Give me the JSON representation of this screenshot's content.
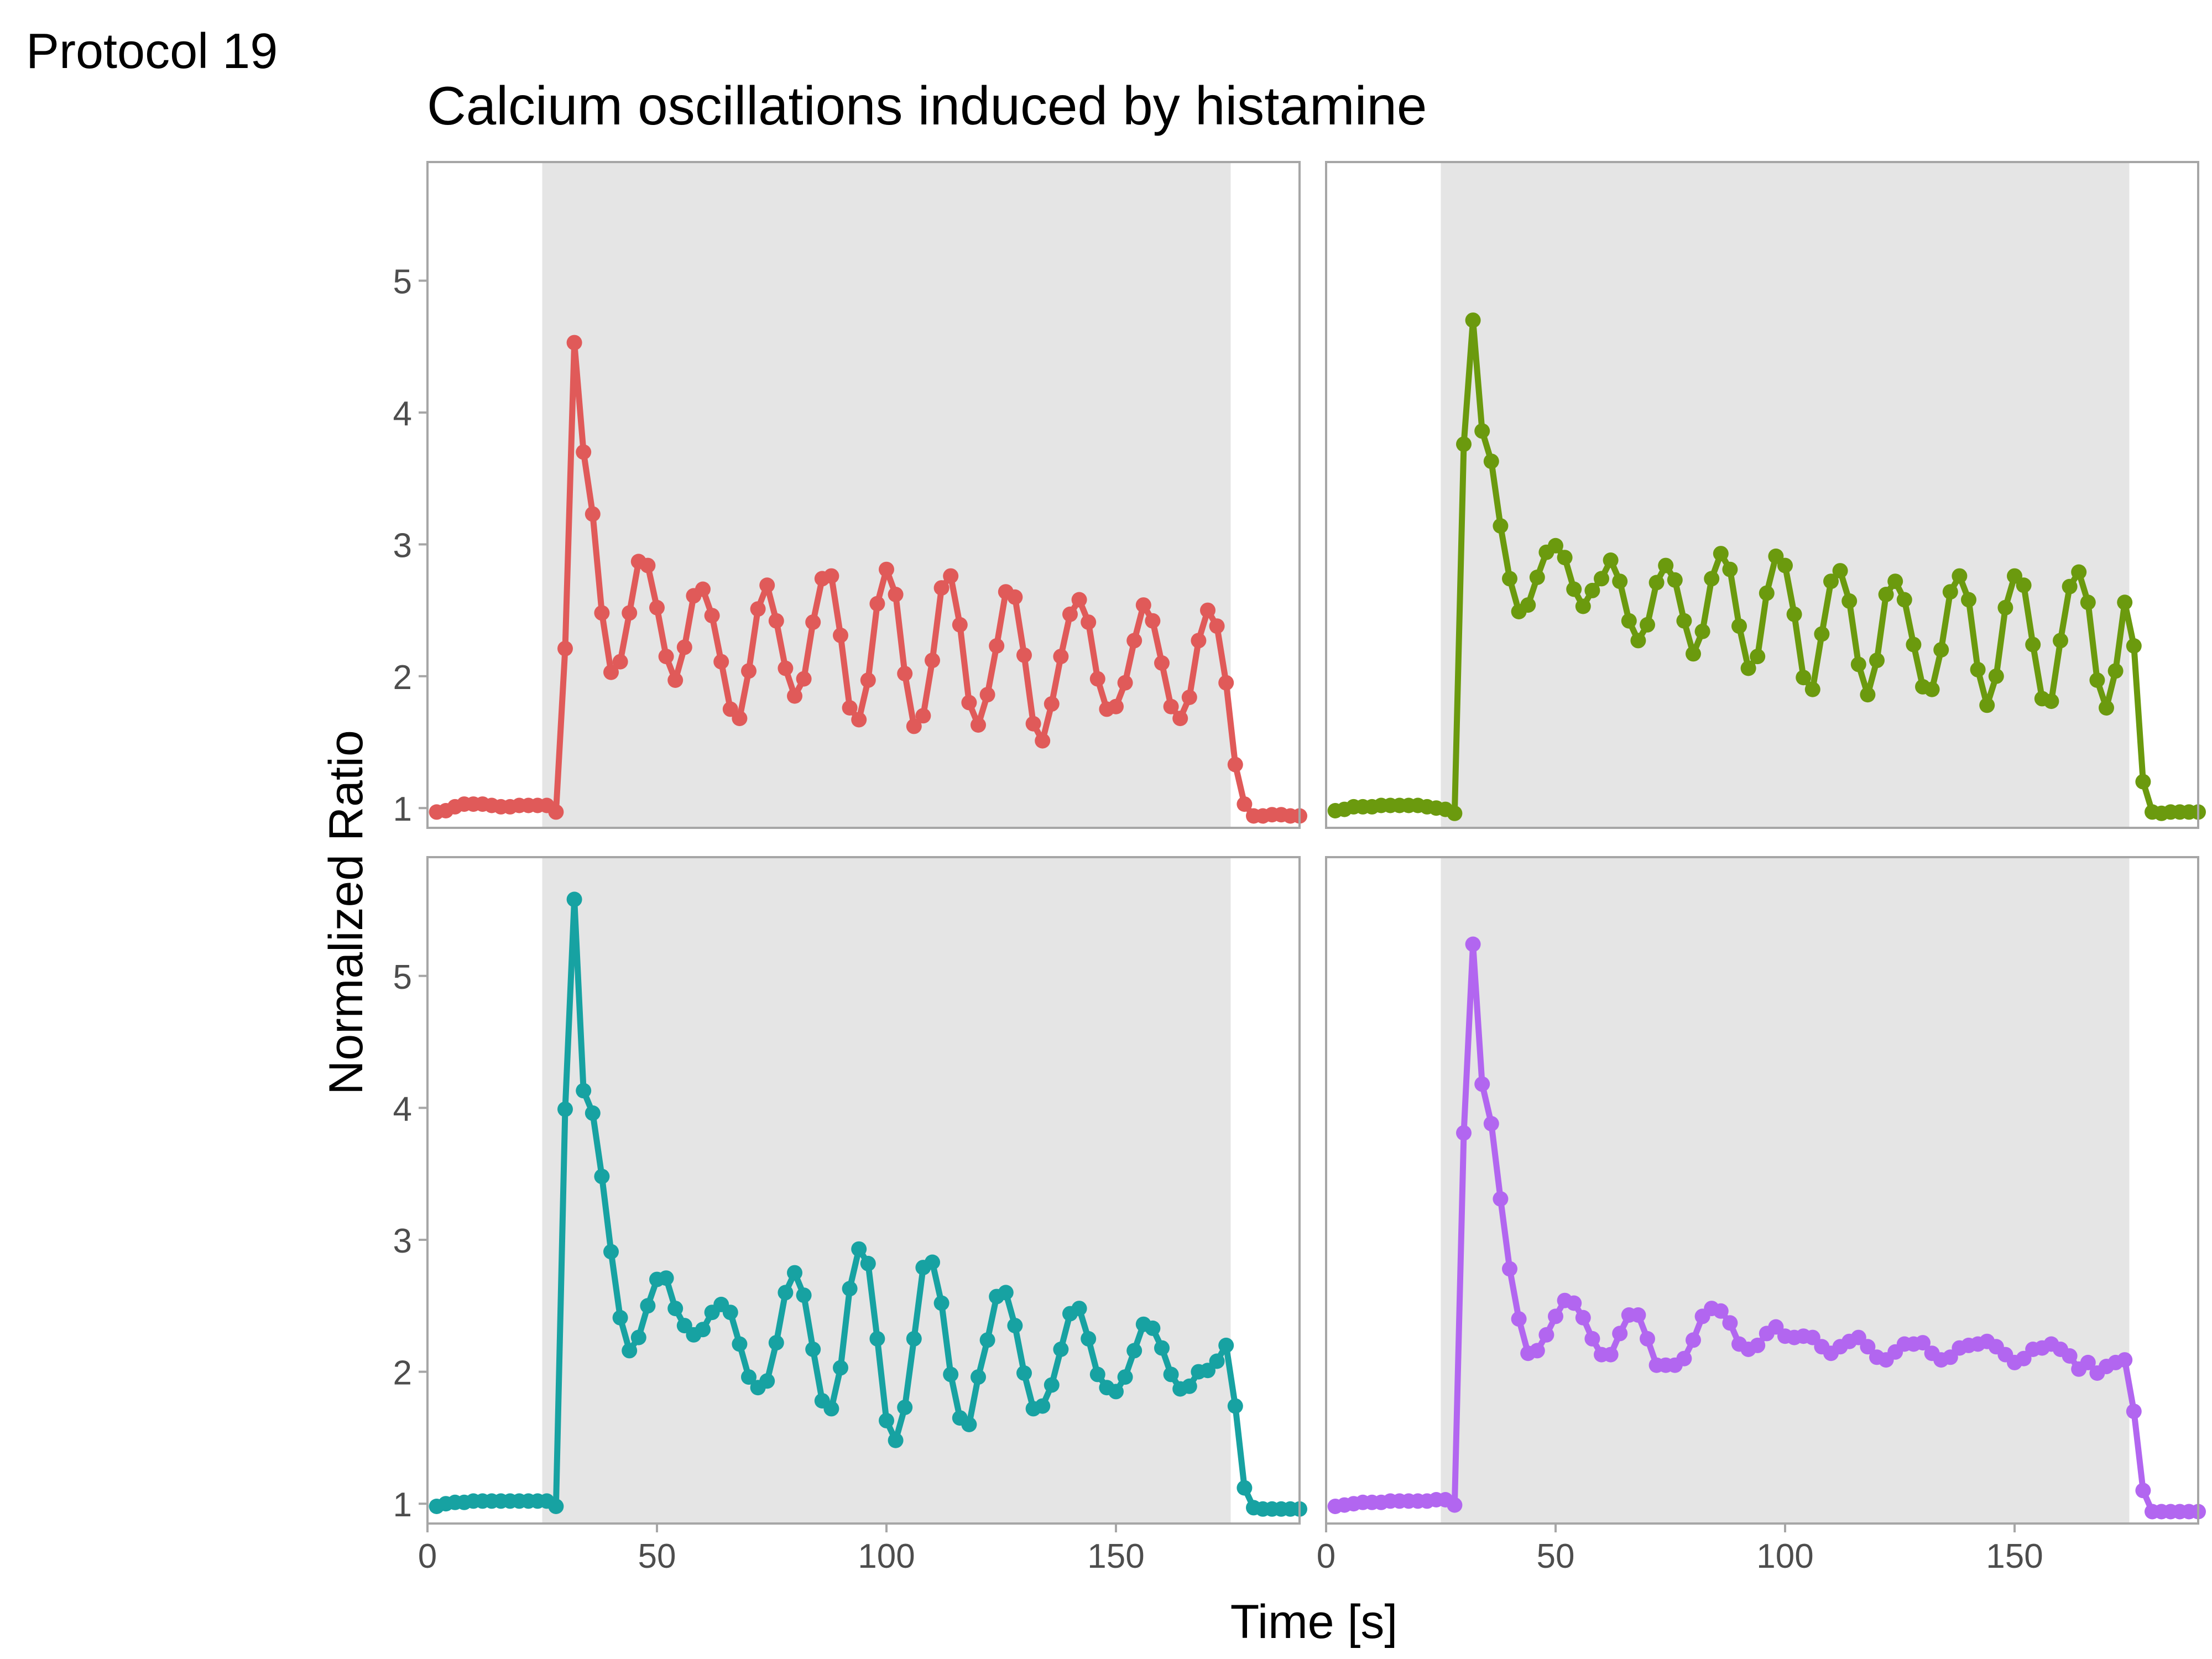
{
  "tag": "Protocol 19",
  "title": "Calcium oscillations induced by histamine",
  "chart_data": {
    "type": "line",
    "title": "Calcium oscillations induced by histamine",
    "xlabel": "Time [s]",
    "ylabel": "Normalized Ratio",
    "xlim": [
      0,
      190
    ],
    "ylim": [
      0.85,
      5.9
    ],
    "x_ticks": [
      0,
      50,
      100,
      150
    ],
    "y_ticks": [
      1,
      2,
      3,
      4,
      5
    ],
    "shaded_region": [
      25,
      175
    ],
    "x": [
      2,
      4,
      6,
      8,
      10,
      12,
      14,
      16,
      18,
      20,
      22,
      24,
      26,
      28,
      30,
      32,
      34,
      36,
      38,
      40,
      42,
      44,
      46,
      48,
      50,
      52,
      54,
      56,
      58,
      60,
      62,
      64,
      66,
      68,
      70,
      72,
      74,
      76,
      78,
      80,
      82,
      84,
      86,
      88,
      90,
      92,
      94,
      96,
      98,
      100,
      102,
      104,
      106,
      108,
      110,
      112,
      114,
      116,
      118,
      120,
      122,
      124,
      126,
      128,
      130,
      132,
      134,
      136,
      138,
      140,
      142,
      144,
      146,
      148,
      150,
      152,
      154,
      156,
      158,
      160,
      162,
      164,
      166,
      168,
      170,
      172,
      174,
      176,
      178,
      180,
      182,
      184,
      186,
      188,
      190
    ],
    "series": [
      {
        "color": "#E05A59",
        "values": [
          0.97,
          0.98,
          1.01,
          1.03,
          1.03,
          1.03,
          1.02,
          1.01,
          1.01,
          1.02,
          1.02,
          1.02,
          1.02,
          0.97,
          2.21,
          4.53,
          3.7,
          3.23,
          2.48,
          2.03,
          2.11,
          2.48,
          2.87,
          2.84,
          2.52,
          2.15,
          1.97,
          2.22,
          2.61,
          2.66,
          2.46,
          2.11,
          1.75,
          1.68,
          2.04,
          2.51,
          2.69,
          2.42,
          2.06,
          1.85,
          1.98,
          2.41,
          2.74,
          2.76,
          2.31,
          1.76,
          1.67,
          1.97,
          2.55,
          2.81,
          2.62,
          2.02,
          1.62,
          1.7,
          2.12,
          2.67,
          2.76,
          2.39,
          1.8,
          1.63,
          1.86,
          2.23,
          2.64,
          2.6,
          2.16,
          1.64,
          1.51,
          1.79,
          2.15,
          2.47,
          2.58,
          2.41,
          1.98,
          1.75,
          1.77,
          1.95,
          2.27,
          2.54,
          2.42,
          2.1,
          1.77,
          1.68,
          1.84,
          2.27,
          2.5,
          2.38,
          1.95,
          1.33,
          1.03,
          0.94,
          0.94,
          0.95,
          0.95,
          0.94,
          0.94
        ]
      },
      {
        "color": "#6B9A0E",
        "values": [
          0.98,
          0.99,
          1.01,
          1.01,
          1.01,
          1.02,
          1.02,
          1.02,
          1.02,
          1.02,
          1.01,
          1.0,
          0.99,
          0.96,
          3.76,
          4.7,
          3.86,
          3.63,
          3.14,
          2.74,
          2.49,
          2.54,
          2.75,
          2.94,
          2.99,
          2.9,
          2.66,
          2.53,
          2.65,
          2.74,
          2.88,
          2.72,
          2.42,
          2.27,
          2.39,
          2.71,
          2.84,
          2.73,
          2.42,
          2.17,
          2.34,
          2.74,
          2.93,
          2.81,
          2.38,
          2.06,
          2.15,
          2.63,
          2.91,
          2.84,
          2.47,
          1.99,
          1.9,
          2.32,
          2.72,
          2.8,
          2.57,
          2.09,
          1.86,
          2.12,
          2.62,
          2.72,
          2.58,
          2.24,
          1.92,
          1.9,
          2.2,
          2.64,
          2.76,
          2.58,
          2.05,
          1.78,
          2.0,
          2.52,
          2.76,
          2.69,
          2.24,
          1.83,
          1.81,
          2.27,
          2.68,
          2.79,
          2.56,
          1.97,
          1.76,
          2.04,
          2.56,
          2.23,
          1.2,
          0.97,
          0.96,
          0.97,
          0.97,
          0.97,
          0.97
        ]
      },
      {
        "color": "#17A2A2",
        "values": [
          0.98,
          1.0,
          1.01,
          1.01,
          1.02,
          1.02,
          1.02,
          1.02,
          1.02,
          1.02,
          1.02,
          1.02,
          1.02,
          0.98,
          3.99,
          5.58,
          4.13,
          3.96,
          3.48,
          2.91,
          2.41,
          2.16,
          2.26,
          2.5,
          2.7,
          2.71,
          2.48,
          2.35,
          2.28,
          2.32,
          2.45,
          2.51,
          2.45,
          2.21,
          1.96,
          1.88,
          1.93,
          2.22,
          2.6,
          2.75,
          2.58,
          2.17,
          1.78,
          1.72,
          2.03,
          2.63,
          2.93,
          2.82,
          2.25,
          1.63,
          1.48,
          1.73,
          2.25,
          2.79,
          2.83,
          2.52,
          1.98,
          1.65,
          1.6,
          1.96,
          2.24,
          2.57,
          2.6,
          2.35,
          1.99,
          1.72,
          1.74,
          1.9,
          2.17,
          2.44,
          2.48,
          2.25,
          1.98,
          1.88,
          1.85,
          1.96,
          2.16,
          2.36,
          2.33,
          2.18,
          1.98,
          1.87,
          1.89,
          2.0,
          2.01,
          2.08,
          2.2,
          1.74,
          1.12,
          0.97,
          0.96,
          0.96,
          0.96,
          0.96,
          0.96
        ]
      },
      {
        "color": "#B266F0",
        "values": [
          0.98,
          0.99,
          1.0,
          1.01,
          1.01,
          1.01,
          1.02,
          1.02,
          1.02,
          1.02,
          1.02,
          1.03,
          1.03,
          0.99,
          3.81,
          5.24,
          4.18,
          3.88,
          3.31,
          2.78,
          2.4,
          2.14,
          2.16,
          2.28,
          2.42,
          2.54,
          2.52,
          2.41,
          2.25,
          2.13,
          2.13,
          2.29,
          2.43,
          2.43,
          2.25,
          2.05,
          2.05,
          2.05,
          2.1,
          2.24,
          2.42,
          2.48,
          2.46,
          2.37,
          2.21,
          2.17,
          2.2,
          2.29,
          2.34,
          2.27,
          2.26,
          2.27,
          2.26,
          2.19,
          2.14,
          2.19,
          2.23,
          2.26,
          2.19,
          2.11,
          2.09,
          2.15,
          2.21,
          2.21,
          2.22,
          2.14,
          2.09,
          2.11,
          2.18,
          2.2,
          2.21,
          2.23,
          2.19,
          2.13,
          2.07,
          2.1,
          2.17,
          2.18,
          2.21,
          2.17,
          2.12,
          2.02,
          2.07,
          1.99,
          2.04,
          2.07,
          2.09,
          1.7,
          1.1,
          0.94,
          0.94,
          0.94,
          0.94,
          0.94,
          0.94
        ]
      }
    ]
  }
}
